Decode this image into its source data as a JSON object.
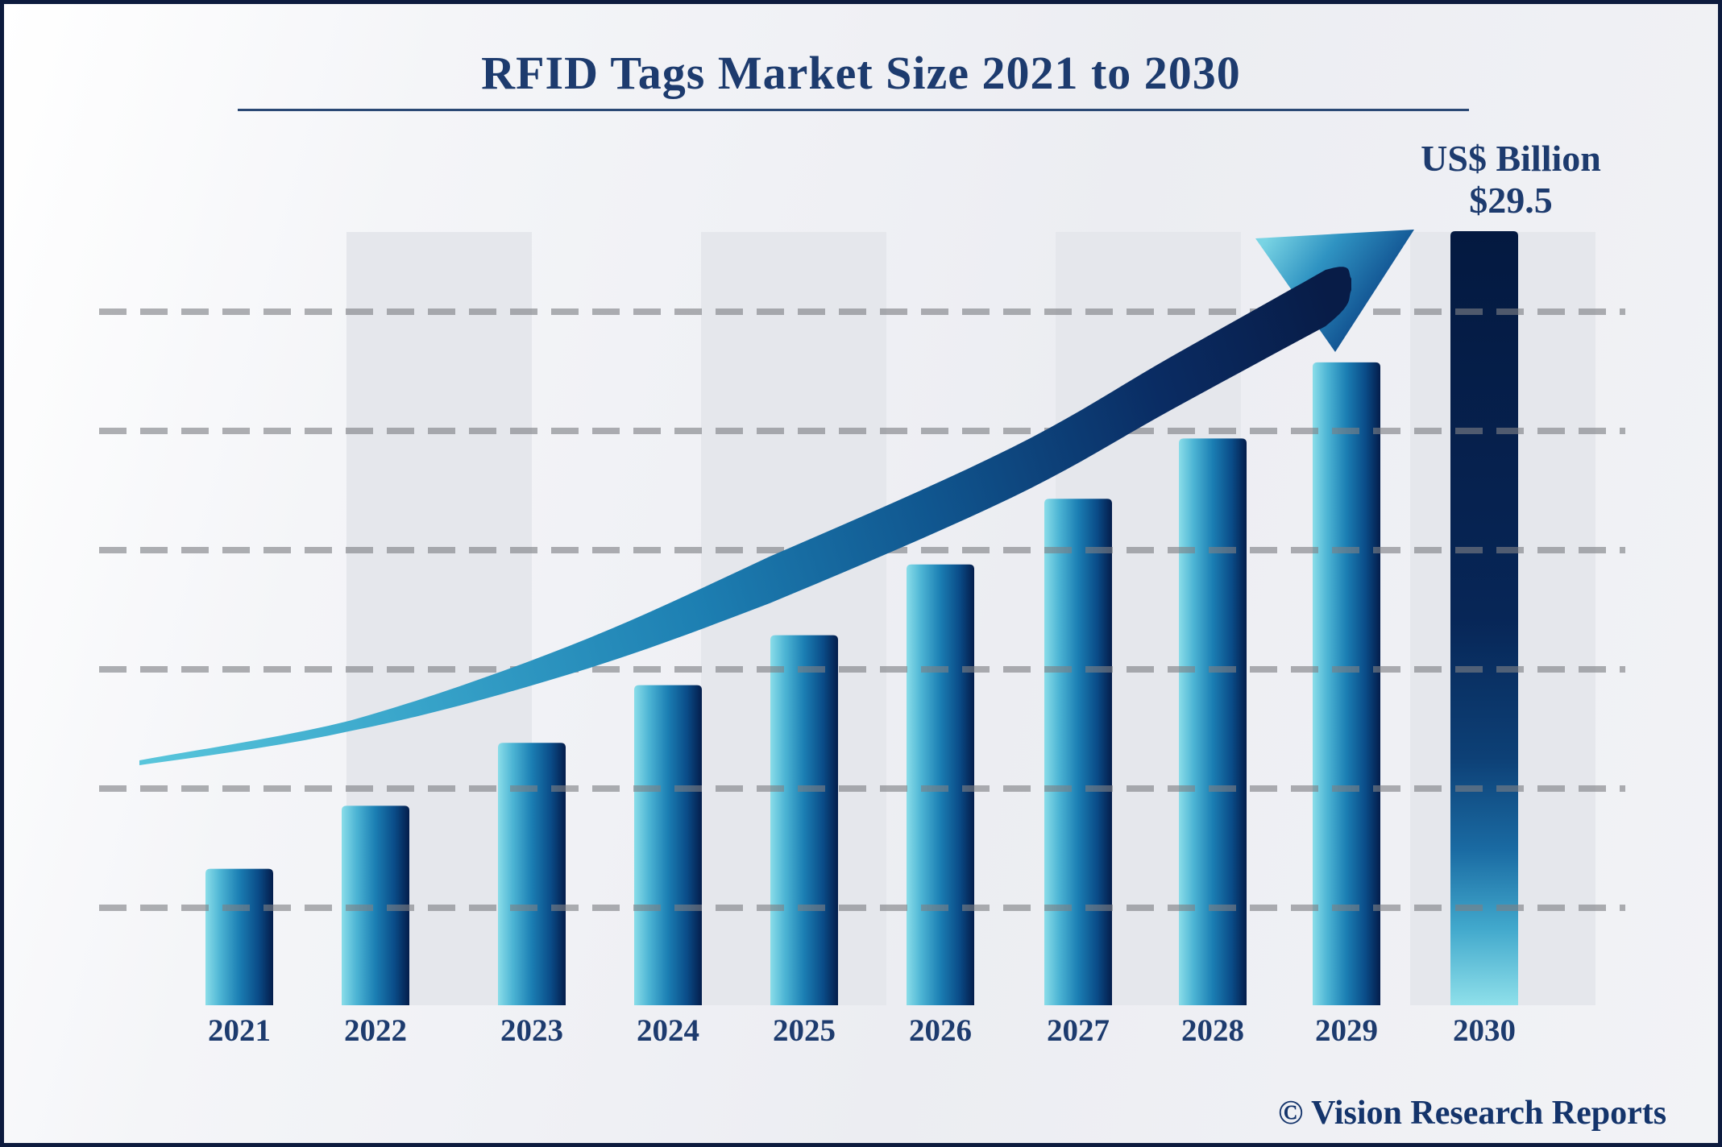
{
  "title": {
    "text": "RFID Tags Market Size 2021 to 2030"
  },
  "unit_label": {
    "line1": "US$ Billion",
    "line2": "$29.5"
  },
  "watermark": {
    "text": "© Vision Research Reports"
  },
  "chart_data": {
    "type": "bar",
    "title": "RFID Tags Market Size 2021 to 2030",
    "categories": [
      "2021",
      "2022",
      "2023",
      "2024",
      "2025",
      "2026",
      "2027",
      "2028",
      "2029",
      "2030"
    ],
    "values": [
      5.2,
      7.6,
      10.0,
      12.2,
      14.1,
      16.8,
      19.3,
      21.6,
      24.5,
      29.5
    ],
    "values_note": "Only the 2030 value ($29.5B) is labeled on the chart; other values are estimated from bar heights",
    "unit": "US$ Billion",
    "ylabel": "US$ Billion",
    "xlabel": "",
    "ylim": [
      0,
      29.5
    ],
    "labeled_point": {
      "category": "2030",
      "label": "$29.5"
    },
    "legend": "none",
    "grid": "6 dashed horizontal gridlines, unlabeled",
    "annotations": [
      "curved upward trend arrow sweeping from 2021 to an arrowhead above 2029"
    ],
    "colors": {
      "bar_gradient_left": "#8adde9",
      "bar_gradient_right": "#041d4b",
      "bar_2030_top": "#041940",
      "bar_2030_bottom": "#8fe0ea",
      "trend_arrow_start": "#58c5db",
      "trend_arrow_end": "#081c47",
      "gridline": "#a9a9a9",
      "background_band": "#e5e7ec",
      "text_navy": "#1d3b6e",
      "frame_border": "#0d1b3e"
    }
  }
}
